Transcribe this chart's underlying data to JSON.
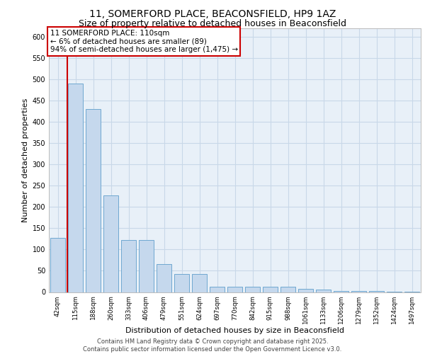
{
  "title_line1": "11, SOMERFORD PLACE, BEACONSFIELD, HP9 1AZ",
  "title_line2": "Size of property relative to detached houses in Beaconsfield",
  "xlabel": "Distribution of detached houses by size in Beaconsfield",
  "ylabel": "Number of detached properties",
  "footer_line1": "Contains HM Land Registry data © Crown copyright and database right 2025.",
  "footer_line2": "Contains public sector information licensed under the Open Government Licence v3.0.",
  "annotation_line1": "11 SOMERFORD PLACE: 110sqm",
  "annotation_line2": "← 6% of detached houses are smaller (89)",
  "annotation_line3": "94% of semi-detached houses are larger (1,475) →",
  "bar_color": "#c5d8ed",
  "bar_edge_color": "#6fa8d0",
  "grid_color": "#c8d8e8",
  "bg_color": "#e8f0f8",
  "annotation_box_color": "#ffffff",
  "annotation_box_edge": "#cc0000",
  "vline_color": "#cc0000",
  "categories": [
    "42sqm",
    "115sqm",
    "188sqm",
    "260sqm",
    "333sqm",
    "406sqm",
    "479sqm",
    "551sqm",
    "624sqm",
    "697sqm",
    "770sqm",
    "842sqm",
    "915sqm",
    "988sqm",
    "1061sqm",
    "1133sqm",
    "1206sqm",
    "1279sqm",
    "1352sqm",
    "1424sqm",
    "1497sqm"
  ],
  "values": [
    128,
    490,
    430,
    228,
    122,
    122,
    66,
    42,
    42,
    13,
    13,
    13,
    13,
    13,
    8,
    6,
    3,
    2,
    2,
    1,
    1
  ],
  "vline_x_index": 1,
  "ylim": [
    0,
    620
  ],
  "yticks": [
    0,
    50,
    100,
    150,
    200,
    250,
    300,
    350,
    400,
    450,
    500,
    550,
    600
  ],
  "title_fontsize": 10,
  "subtitle_fontsize": 9,
  "axis_label_fontsize": 8,
  "tick_fontsize": 7,
  "footer_fontsize": 6,
  "annotation_fontsize": 7.5
}
